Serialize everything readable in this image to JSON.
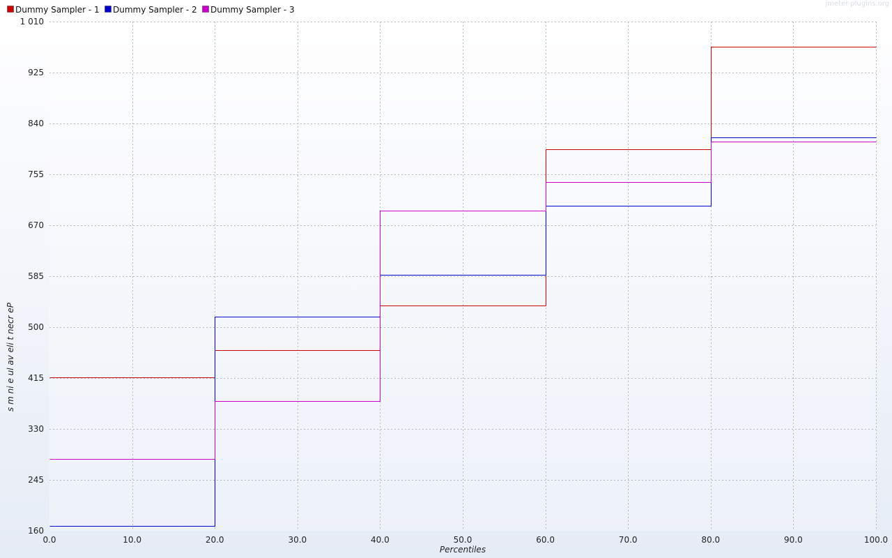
{
  "watermark": "jmeter-plugins.org",
  "chart_data": {
    "type": "line",
    "step": true,
    "title": "",
    "xlabel": "Percentiles",
    "ylabel": "Percentile value in ms",
    "ylabel_display": "s m ni  e ul av  eli t necr eP",
    "xlim": [
      0,
      100
    ],
    "ylim": [
      160,
      1010
    ],
    "x_ticks": [
      0,
      10,
      20,
      30,
      40,
      50,
      60,
      70,
      80,
      90,
      100
    ],
    "x_tick_labels": [
      "0.0",
      "10.0",
      "20.0",
      "30.0",
      "40.0",
      "50.0",
      "60.0",
      "70.0",
      "80.0",
      "90.0",
      "100.0"
    ],
    "y_ticks": [
      160,
      245,
      330,
      415,
      500,
      585,
      670,
      755,
      840,
      925,
      1010
    ],
    "y_tick_labels": [
      "160",
      "245",
      "330",
      "415",
      "500",
      "585",
      "670",
      "755",
      "840",
      "925",
      "1 010"
    ],
    "grid": true,
    "legend_position": "top-left",
    "series": [
      {
        "name": "Dummy Sampler - 1",
        "color": "#cc0000",
        "x": [
          0,
          20,
          40,
          60,
          80,
          100
        ],
        "values": [
          416,
          461,
          536,
          797,
          968,
          968
        ]
      },
      {
        "name": "Dummy Sampler - 2",
        "color": "#0000cc",
        "x": [
          0,
          20,
          40,
          60,
          80,
          100
        ],
        "values": [
          168,
          517,
          587,
          703,
          817,
          817
        ]
      },
      {
        "name": "Dummy Sampler - 3",
        "color": "#cc00cc",
        "x": [
          0,
          20,
          40,
          60,
          80,
          100
        ],
        "values": [
          280,
          377,
          695,
          742,
          810,
          810
        ]
      }
    ]
  }
}
